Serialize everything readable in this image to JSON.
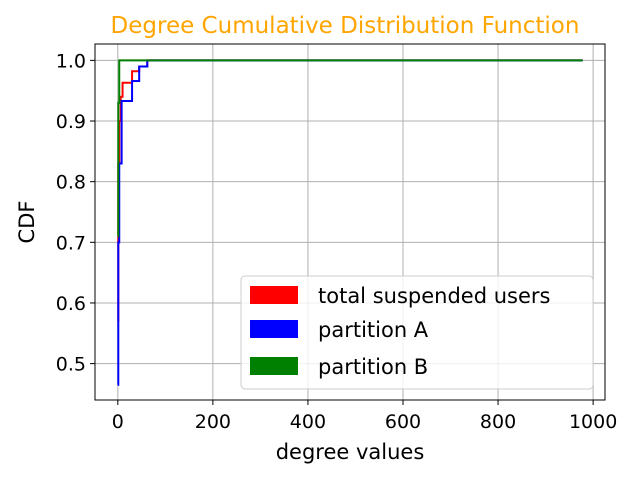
{
  "chart_data": {
    "type": "line",
    "title": "Degree Cumulative Distribution Function",
    "title_color": "#ffa500",
    "xlabel": "degree values",
    "ylabel": "CDF",
    "xlim": [
      -48,
      1025
    ],
    "ylim": [
      0.44,
      1.027
    ],
    "xticks": [
      0,
      200,
      400,
      600,
      800,
      1000
    ],
    "yticks": [
      0.5,
      0.6,
      0.7,
      0.8,
      0.9,
      1.0
    ],
    "xtick_labels": [
      "0",
      "200",
      "400",
      "600",
      "800",
      "1000"
    ],
    "ytick_labels": [
      "0.5",
      "0.6",
      "0.7",
      "0.8",
      "0.9",
      "1.0"
    ],
    "grid": true,
    "legend_position": "lower-right",
    "series": [
      {
        "name": "total suspended users",
        "color": "#ff0000",
        "x": [
          0,
          1,
          1,
          3,
          3,
          6,
          6,
          10,
          10,
          30,
          30,
          45,
          45,
          62,
          62,
          978
        ],
        "y": [
          0.57,
          0.57,
          0.83,
          0.83,
          0.9,
          0.9,
          0.94,
          0.94,
          0.963,
          0.963,
          0.982,
          0.982,
          0.99,
          0.99,
          1.0,
          1.0
        ]
      },
      {
        "name": "partition A",
        "color": "#0000ff",
        "x": [
          0,
          1,
          1,
          3,
          3,
          8,
          8,
          30,
          30,
          45,
          45,
          62,
          62,
          978
        ],
        "y": [
          0.465,
          0.465,
          0.7,
          0.7,
          0.83,
          0.83,
          0.933,
          0.933,
          0.966,
          0.966,
          0.99,
          0.99,
          1.0,
          1.0
        ],
        "slope_points": true
      },
      {
        "name": "partition B",
        "color": "#008000",
        "x": [
          0,
          1,
          1,
          3,
          3,
          978
        ],
        "y": [
          0.71,
          0.71,
          0.93,
          0.93,
          1.0,
          1.0
        ]
      }
    ]
  }
}
